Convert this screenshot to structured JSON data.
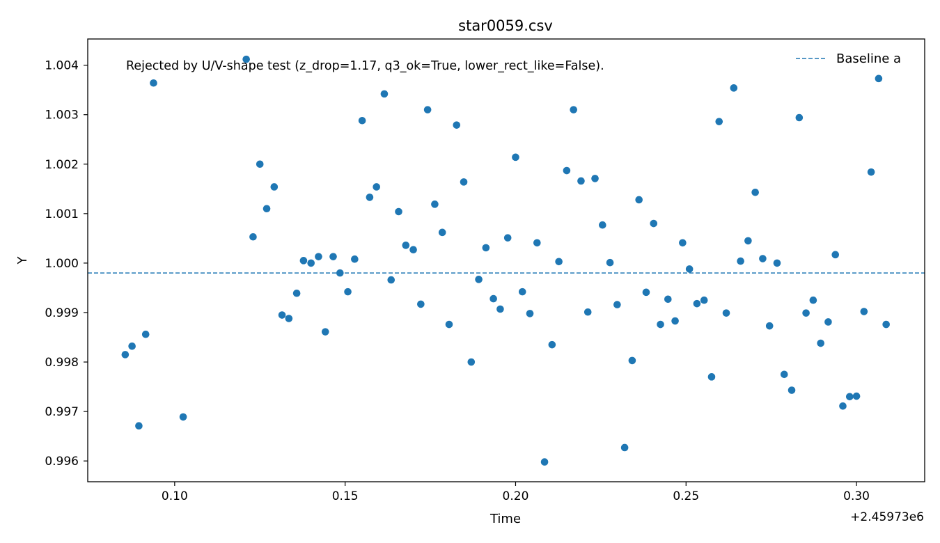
{
  "chart_data": {
    "type": "scatter",
    "title": "star0059.csv",
    "xlabel": "Time",
    "ylabel": "Y",
    "x_offset_label": "+2.45973e6",
    "annotation": "Rejected by U/V-shape test (z_drop=1.17, q3_ok=True, lower_rect_like=False).",
    "xlim": [
      0.0745,
      0.32
    ],
    "ylim": [
      0.99558,
      1.00453
    ],
    "xticks": [
      0.1,
      0.15,
      0.2,
      0.25,
      0.3
    ],
    "xtick_labels": [
      "0.10",
      "0.15",
      "0.20",
      "0.25",
      "0.30"
    ],
    "yticks": [
      0.996,
      0.997,
      0.998,
      0.999,
      1.0,
      1.001,
      1.002,
      1.003,
      1.004
    ],
    "ytick_labels": [
      "0.996",
      "0.997",
      "0.998",
      "0.999",
      "1.000",
      "1.001",
      "1.002",
      "1.003",
      "1.004"
    ],
    "grid": false,
    "legend_position": "top-right",
    "colors": {
      "points": "#1f77b4",
      "baseline": "#1f77b4"
    },
    "baseline": {
      "name": "Baseline a",
      "y": 0.9998,
      "style": "dashed"
    },
    "series": [
      {
        "x": [
          0.0855,
          0.0875,
          0.0895,
          0.0915,
          0.0938,
          0.1025,
          0.121,
          0.123,
          0.125,
          0.127,
          0.1292,
          0.1315,
          0.1335,
          0.1358,
          0.1378,
          0.14,
          0.1422,
          0.1442,
          0.1465,
          0.1485,
          0.1508,
          0.1528,
          0.155,
          0.1572,
          0.1592,
          0.1615,
          0.1635,
          0.1657,
          0.1678,
          0.17,
          0.1722,
          0.1742,
          0.1763,
          0.1785,
          0.1805,
          0.1827,
          0.1848,
          0.187,
          0.1892,
          0.1913,
          0.1935,
          0.1955,
          0.1977,
          0.2,
          0.202,
          0.2042,
          0.2063,
          0.2085,
          0.2107,
          0.2127,
          0.215,
          0.217,
          0.2192,
          0.2212,
          0.2233,
          0.2255,
          0.2277,
          0.2298,
          0.232,
          0.2342,
          0.2362,
          0.2383,
          0.2405,
          0.2425,
          0.2447,
          0.2468,
          0.249,
          0.251,
          0.2532,
          0.2553,
          0.2575,
          0.2597,
          0.2618,
          0.264,
          0.266,
          0.2682,
          0.2703,
          0.2725,
          0.2745,
          0.2767,
          0.2788,
          0.281,
          0.2832,
          0.2852,
          0.2873,
          0.2895,
          0.2917,
          0.2938,
          0.296,
          0.298,
          0.3,
          0.3022,
          0.3043,
          0.3065,
          0.3087
        ],
        "y": [
          0.99815,
          0.99832,
          0.99671,
          0.99856,
          1.00364,
          0.99689,
          1.00412,
          1.00053,
          1.002,
          1.0011,
          1.00154,
          0.99895,
          0.99888,
          0.99939,
          1.00005,
          1.0,
          1.00013,
          0.99861,
          1.00013,
          0.9998,
          0.99942,
          1.00008,
          1.00288,
          1.00133,
          1.00154,
          1.00342,
          0.99966,
          1.00104,
          1.00036,
          1.00027,
          0.99917,
          1.0031,
          1.00119,
          1.00062,
          0.99876,
          1.00279,
          1.00164,
          0.998,
          0.99967,
          1.00031,
          0.99928,
          0.99907,
          1.00051,
          1.00214,
          0.99942,
          0.99898,
          1.00041,
          0.99598,
          0.99835,
          1.00003,
          1.00187,
          1.0031,
          1.00166,
          0.99901,
          1.00171,
          1.00077,
          1.00001,
          0.99916,
          0.99627,
          0.99803,
          1.00128,
          0.99941,
          1.0008,
          0.99876,
          0.99927,
          0.99883,
          1.00041,
          0.99988,
          0.99918,
          0.99925,
          0.9977,
          1.00286,
          0.99899,
          1.00354,
          1.00004,
          1.00045,
          1.00143,
          1.00009,
          0.99873,
          1.0,
          0.99775,
          0.99743,
          1.00294,
          0.99899,
          0.99925,
          0.99838,
          0.99881,
          1.00017,
          0.99711,
          0.9973,
          0.99731,
          0.99902,
          1.00184,
          1.00373,
          0.99876
        ]
      }
    ]
  }
}
